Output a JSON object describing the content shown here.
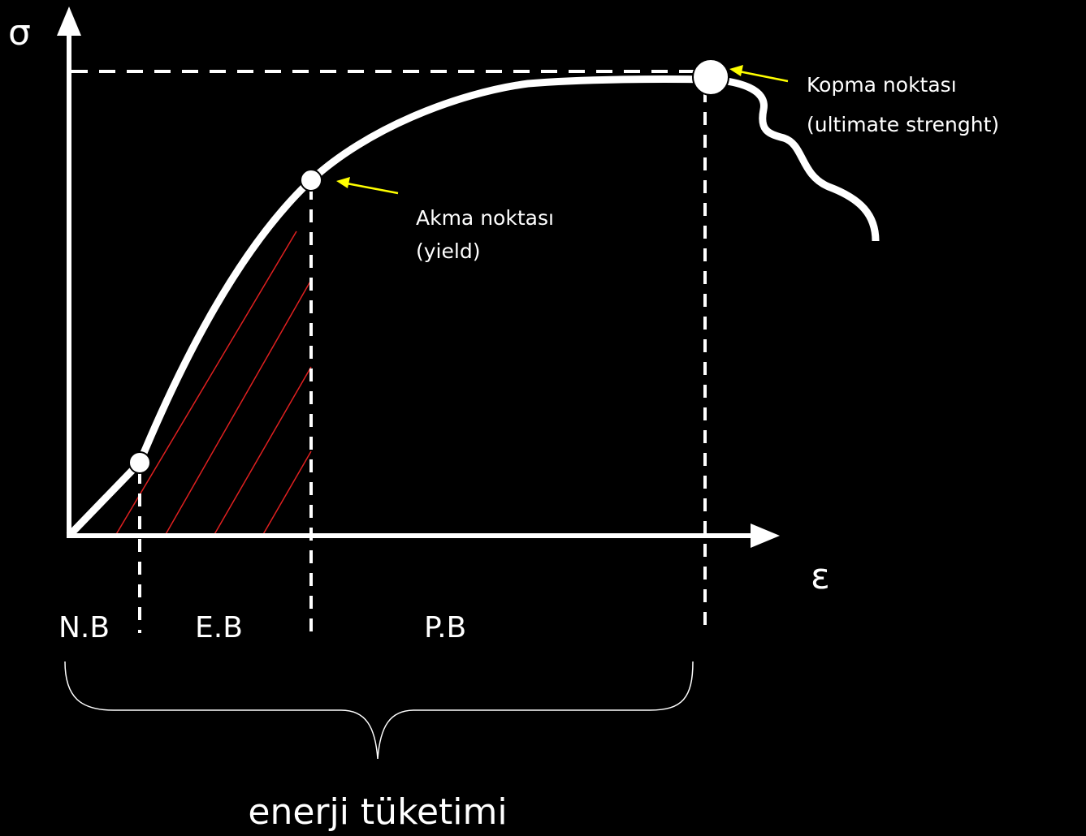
{
  "axes": {
    "y_label": "σ",
    "x_label": "ε"
  },
  "annotations": {
    "ultimate": {
      "line1": "Kopma noktası",
      "line2": "(ultimate strenght)"
    },
    "yield": {
      "line1": "Akma noktası",
      "line2": "(yield)"
    }
  },
  "regions": [
    "N.B",
    "E.B",
    "P.B"
  ],
  "brace_label": "enerji tüketimi"
}
